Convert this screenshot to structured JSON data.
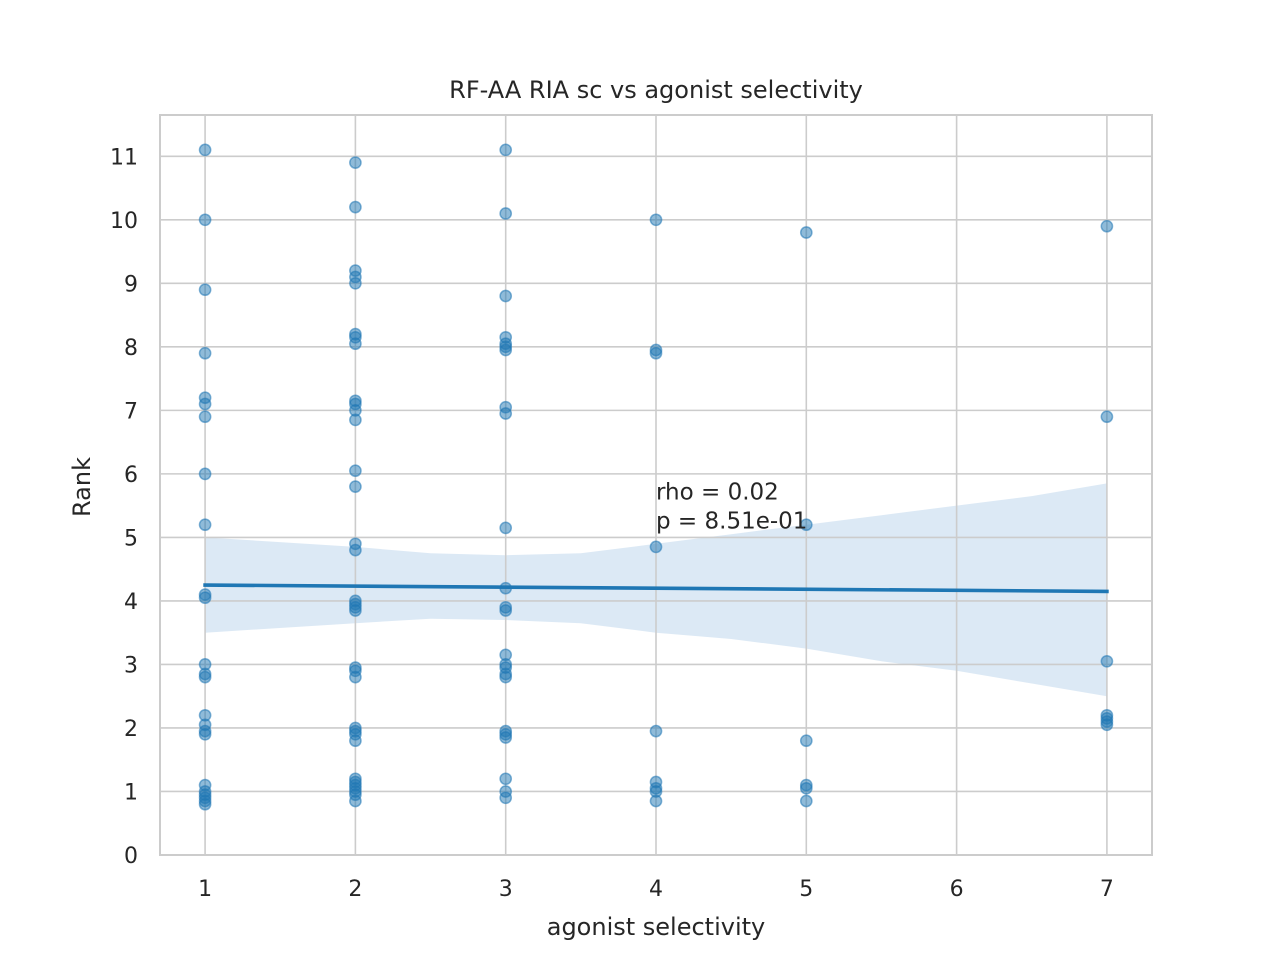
{
  "chart_data": {
    "type": "scatter",
    "title": "RF-AA RIA sc vs agonist selectivity",
    "xlabel": "agonist selectivity",
    "ylabel": "Rank",
    "xlim": [
      0.7,
      7.3
    ],
    "ylim": [
      0,
      11.65
    ],
    "x_ticks": [
      1,
      2,
      3,
      4,
      5,
      6,
      7
    ],
    "y_ticks": [
      0,
      1,
      2,
      3,
      4,
      5,
      6,
      7,
      8,
      9,
      10,
      11
    ],
    "grid": true,
    "colors": {
      "points": "#1f77b4",
      "regression_line": "#1f77b4",
      "confidence_band": "#c6dbef",
      "grid": "#cccccc",
      "frame": "#cccccc"
    },
    "points": [
      {
        "x": 1,
        "y": 11.1
      },
      {
        "x": 1,
        "y": 10.0
      },
      {
        "x": 1,
        "y": 8.9
      },
      {
        "x": 1,
        "y": 7.9
      },
      {
        "x": 1,
        "y": 7.2
      },
      {
        "x": 1,
        "y": 7.1
      },
      {
        "x": 1,
        "y": 6.9
      },
      {
        "x": 1,
        "y": 6.0
      },
      {
        "x": 1,
        "y": 5.2
      },
      {
        "x": 1,
        "y": 4.1
      },
      {
        "x": 1,
        "y": 4.05
      },
      {
        "x": 1,
        "y": 3.0
      },
      {
        "x": 1,
        "y": 2.85
      },
      {
        "x": 1,
        "y": 2.8
      },
      {
        "x": 1,
        "y": 2.2
      },
      {
        "x": 1,
        "y": 2.05
      },
      {
        "x": 1,
        "y": 1.95
      },
      {
        "x": 1,
        "y": 1.9
      },
      {
        "x": 1,
        "y": 1.1
      },
      {
        "x": 1,
        "y": 1.0
      },
      {
        "x": 1,
        "y": 0.95
      },
      {
        "x": 1,
        "y": 0.9
      },
      {
        "x": 1,
        "y": 0.85
      },
      {
        "x": 1,
        "y": 0.8
      },
      {
        "x": 2,
        "y": 10.9
      },
      {
        "x": 2,
        "y": 10.2
      },
      {
        "x": 2,
        "y": 9.2
      },
      {
        "x": 2,
        "y": 9.1
      },
      {
        "x": 2,
        "y": 9.0
      },
      {
        "x": 2,
        "y": 8.2
      },
      {
        "x": 2,
        "y": 8.15
      },
      {
        "x": 2,
        "y": 8.05
      },
      {
        "x": 2,
        "y": 7.15
      },
      {
        "x": 2,
        "y": 7.1
      },
      {
        "x": 2,
        "y": 7.0
      },
      {
        "x": 2,
        "y": 6.85
      },
      {
        "x": 2,
        "y": 6.05
      },
      {
        "x": 2,
        "y": 5.8
      },
      {
        "x": 2,
        "y": 4.9
      },
      {
        "x": 2,
        "y": 4.8
      },
      {
        "x": 2,
        "y": 4.0
      },
      {
        "x": 2,
        "y": 3.95
      },
      {
        "x": 2,
        "y": 3.9
      },
      {
        "x": 2,
        "y": 3.85
      },
      {
        "x": 2,
        "y": 2.95
      },
      {
        "x": 2,
        "y": 2.9
      },
      {
        "x": 2,
        "y": 2.8
      },
      {
        "x": 2,
        "y": 2.0
      },
      {
        "x": 2,
        "y": 1.95
      },
      {
        "x": 2,
        "y": 1.9
      },
      {
        "x": 2,
        "y": 1.8
      },
      {
        "x": 2,
        "y": 1.2
      },
      {
        "x": 2,
        "y": 1.15
      },
      {
        "x": 2,
        "y": 1.1
      },
      {
        "x": 2,
        "y": 1.05
      },
      {
        "x": 2,
        "y": 1.0
      },
      {
        "x": 2,
        "y": 0.95
      },
      {
        "x": 2,
        "y": 0.85
      },
      {
        "x": 3,
        "y": 11.1
      },
      {
        "x": 3,
        "y": 10.1
      },
      {
        "x": 3,
        "y": 8.8
      },
      {
        "x": 3,
        "y": 8.15
      },
      {
        "x": 3,
        "y": 8.05
      },
      {
        "x": 3,
        "y": 8.0
      },
      {
        "x": 3,
        "y": 7.95
      },
      {
        "x": 3,
        "y": 7.05
      },
      {
        "x": 3,
        "y": 6.95
      },
      {
        "x": 3,
        "y": 5.15
      },
      {
        "x": 3,
        "y": 4.2
      },
      {
        "x": 3,
        "y": 3.9
      },
      {
        "x": 3,
        "y": 3.85
      },
      {
        "x": 3,
        "y": 3.15
      },
      {
        "x": 3,
        "y": 3.0
      },
      {
        "x": 3,
        "y": 2.95
      },
      {
        "x": 3,
        "y": 2.85
      },
      {
        "x": 3,
        "y": 2.8
      },
      {
        "x": 3,
        "y": 1.95
      },
      {
        "x": 3,
        "y": 1.9
      },
      {
        "x": 3,
        "y": 1.85
      },
      {
        "x": 3,
        "y": 1.2
      },
      {
        "x": 3,
        "y": 1.0
      },
      {
        "x": 3,
        "y": 0.9
      },
      {
        "x": 4,
        "y": 10.0
      },
      {
        "x": 4,
        "y": 7.95
      },
      {
        "x": 4,
        "y": 7.9
      },
      {
        "x": 4,
        "y": 4.85
      },
      {
        "x": 4,
        "y": 1.95
      },
      {
        "x": 4,
        "y": 1.15
      },
      {
        "x": 4,
        "y": 1.05
      },
      {
        "x": 4,
        "y": 1.0
      },
      {
        "x": 4,
        "y": 0.85
      },
      {
        "x": 5,
        "y": 9.8
      },
      {
        "x": 5,
        "y": 5.2
      },
      {
        "x": 5,
        "y": 1.8
      },
      {
        "x": 5,
        "y": 1.1
      },
      {
        "x": 5,
        "y": 1.05
      },
      {
        "x": 5,
        "y": 0.85
      },
      {
        "x": 7,
        "y": 9.9
      },
      {
        "x": 7,
        "y": 6.9
      },
      {
        "x": 7,
        "y": 3.05
      },
      {
        "x": 7,
        "y": 2.2
      },
      {
        "x": 7,
        "y": 2.15
      },
      {
        "x": 7,
        "y": 2.1
      },
      {
        "x": 7,
        "y": 2.05
      }
    ],
    "regression": {
      "x": [
        1,
        7
      ],
      "y": [
        4.25,
        4.15
      ]
    },
    "confidence_band": {
      "x": [
        1.0,
        2.0,
        2.5,
        3.0,
        3.5,
        4.0,
        4.5,
        5.0,
        5.5,
        6.0,
        6.5,
        7.0
      ],
      "upper": [
        5.0,
        4.85,
        4.75,
        4.72,
        4.75,
        4.9,
        5.05,
        5.2,
        5.35,
        5.5,
        5.65,
        5.85
      ],
      "lower": [
        3.5,
        3.65,
        3.72,
        3.7,
        3.65,
        3.5,
        3.4,
        3.25,
        3.05,
        2.9,
        2.7,
        2.5
      ]
    },
    "annotation": {
      "lines": [
        "rho = 0.02",
        "p = 8.51e-01"
      ],
      "x": 4.0,
      "y": 5.6
    }
  }
}
